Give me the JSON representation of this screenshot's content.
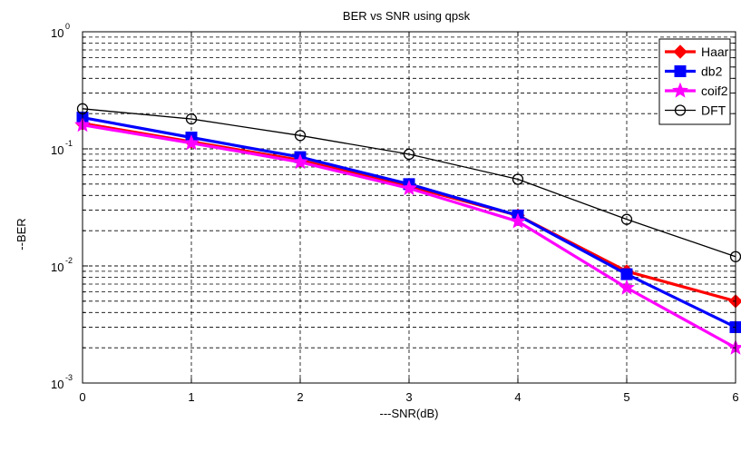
{
  "chart_data": {
    "type": "line",
    "title": "BER vs SNR using qpsk",
    "xlabel": "---SNR(dB)",
    "ylabel": "--BER",
    "xlim": [
      0,
      6
    ],
    "ylim": [
      0.001,
      1
    ],
    "yscale": "log",
    "grid": true,
    "legend_position": "top-right",
    "x_ticks": [
      "0",
      "1",
      "2",
      "3",
      "4",
      "5",
      "6"
    ],
    "y_ticks": [
      {
        "value": 1,
        "base": "10",
        "exp": "0"
      },
      {
        "value": 0.1,
        "base": "10",
        "exp": "-1"
      },
      {
        "value": 0.01,
        "base": "10",
        "exp": "-2"
      },
      {
        "value": 0.001,
        "base": "10",
        "exp": "-3"
      }
    ],
    "x": [
      0,
      1,
      2,
      3,
      4,
      5,
      6
    ],
    "series": [
      {
        "name": "Haar",
        "color": "#ff0000",
        "marker": "diamond",
        "line_width": "thick",
        "values": [
          0.165,
          0.115,
          0.08,
          0.048,
          0.027,
          0.009,
          0.005
        ]
      },
      {
        "name": "db2",
        "color": "#0000ff",
        "marker": "square",
        "line_width": "thick",
        "values": [
          0.185,
          0.125,
          0.085,
          0.05,
          0.027,
          0.0085,
          0.003
        ]
      },
      {
        "name": "coif2",
        "color": "#ff00ff",
        "marker": "star",
        "line_width": "thick",
        "values": [
          0.16,
          0.112,
          0.077,
          0.046,
          0.024,
          0.0065,
          0.002
        ]
      },
      {
        "name": "DFT",
        "color": "#000000",
        "marker": "circle",
        "line_width": "thin",
        "values": [
          0.22,
          0.18,
          0.13,
          0.09,
          0.055,
          0.025,
          0.012
        ]
      }
    ]
  }
}
